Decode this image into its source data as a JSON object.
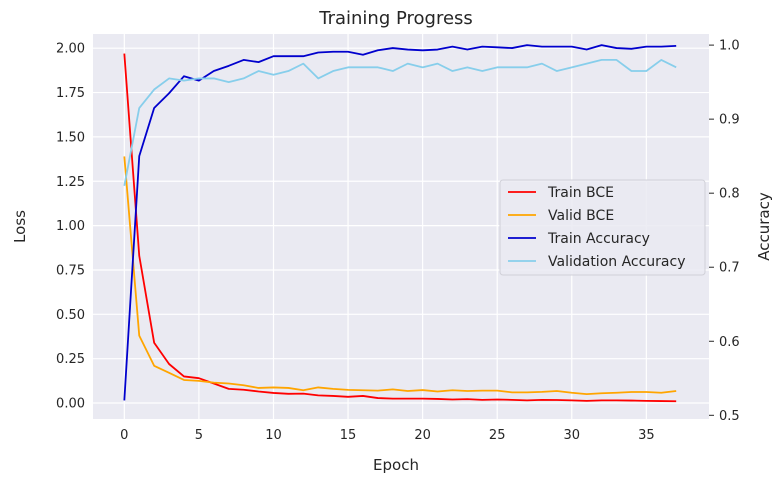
{
  "chart_data": {
    "type": "line",
    "title": "Training Progress",
    "xlabel": "Epoch",
    "ylabel_left": "Loss",
    "ylabel_right": "Accuracy",
    "xlim": [
      -2.1,
      39.2
    ],
    "ylim_left": [
      -0.09,
      2.08
    ],
    "ylim_right": [
      0.495,
      1.015
    ],
    "x_ticks": [
      0,
      5,
      10,
      15,
      20,
      25,
      30,
      35
    ],
    "y_ticks_left": [
      "0.00",
      "0.25",
      "0.50",
      "0.75",
      "1.00",
      "1.25",
      "1.50",
      "1.75",
      "2.00"
    ],
    "y_ticks_right": [
      "0.5",
      "0.6",
      "0.7",
      "0.8",
      "0.9",
      "1.0"
    ],
    "grid": true,
    "legend_position": "center-right",
    "background_color": "#eaeaf2",
    "x": [
      0,
      1,
      2,
      3,
      4,
      5,
      6,
      7,
      8,
      9,
      10,
      11,
      12,
      13,
      14,
      15,
      16,
      17,
      18,
      19,
      20,
      21,
      22,
      23,
      24,
      25,
      26,
      27,
      28,
      29,
      30,
      31,
      32,
      33,
      34,
      35,
      36,
      37
    ],
    "series": [
      {
        "name": "Train BCE",
        "axis": "left",
        "color": "#ff0000",
        "values": [
          1.97,
          0.83,
          0.34,
          0.22,
          0.15,
          0.14,
          0.11,
          0.08,
          0.075,
          0.065,
          0.057,
          0.052,
          0.053,
          0.043,
          0.04,
          0.035,
          0.04,
          0.028,
          0.025,
          0.025,
          0.025,
          0.023,
          0.02,
          0.022,
          0.018,
          0.02,
          0.018,
          0.015,
          0.018,
          0.017,
          0.015,
          0.012,
          0.015,
          0.015,
          0.014,
          0.012,
          0.011,
          0.01
        ]
      },
      {
        "name": "Valid BCE",
        "axis": "left",
        "color": "#ffa500",
        "values": [
          1.39,
          0.38,
          0.21,
          0.17,
          0.13,
          0.125,
          0.115,
          0.11,
          0.1,
          0.085,
          0.088,
          0.085,
          0.072,
          0.088,
          0.08,
          0.074,
          0.072,
          0.07,
          0.077,
          0.068,
          0.073,
          0.065,
          0.072,
          0.068,
          0.07,
          0.07,
          0.06,
          0.06,
          0.063,
          0.068,
          0.058,
          0.05,
          0.055,
          0.058,
          0.062,
          0.062,
          0.058,
          0.068
        ]
      },
      {
        "name": "Train Accuracy",
        "axis": "right",
        "color": "#0000cd",
        "values": [
          0.52,
          0.85,
          0.915,
          0.935,
          0.958,
          0.952,
          0.965,
          0.972,
          0.98,
          0.977,
          0.985,
          0.985,
          0.985,
          0.99,
          0.991,
          0.991,
          0.987,
          0.993,
          0.996,
          0.994,
          0.993,
          0.994,
          0.998,
          0.994,
          0.998,
          0.997,
          0.996,
          1.0,
          0.998,
          0.998,
          0.998,
          0.994,
          1.0,
          0.996,
          0.995,
          0.998,
          0.998,
          0.999
        ]
      },
      {
        "name": "Validation Accuracy",
        "axis": "right",
        "color": "#87ceeb",
        "values": [
          0.81,
          0.915,
          0.94,
          0.955,
          0.952,
          0.955,
          0.955,
          0.95,
          0.955,
          0.965,
          0.96,
          0.965,
          0.975,
          0.955,
          0.965,
          0.97,
          0.97,
          0.97,
          0.965,
          0.975,
          0.97,
          0.975,
          0.965,
          0.97,
          0.965,
          0.97,
          0.97,
          0.97,
          0.975,
          0.965,
          0.97,
          0.975,
          0.98,
          0.98,
          0.965,
          0.965,
          0.98,
          0.97
        ]
      }
    ]
  }
}
